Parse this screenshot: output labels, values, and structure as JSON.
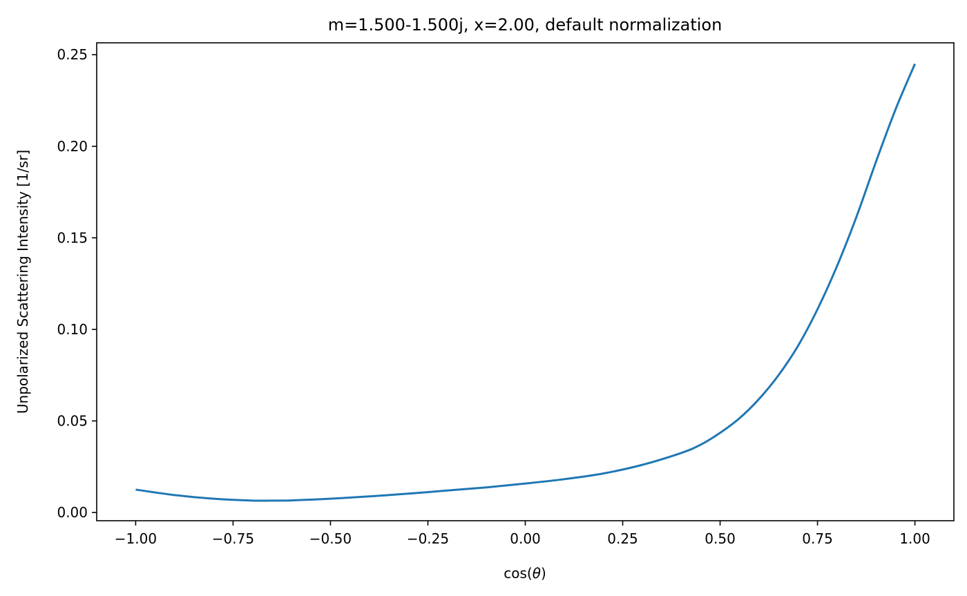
{
  "chart_data": {
    "type": "line",
    "title": "m=1.500-1.500j, x=2.00, default normalization",
    "xlabel_prefix": "cos(",
    "xlabel_symbol": "θ",
    "xlabel_suffix": ")",
    "ylabel": "Unpolarized Scattering Intensity [1/sr]",
    "xlim": [
      -1.1,
      1.1
    ],
    "ylim": [
      -0.0045,
      0.2565
    ],
    "x_ticks": [
      -1.0,
      -0.75,
      -0.5,
      -0.25,
      0.0,
      0.25,
      0.5,
      0.75,
      1.0
    ],
    "x_tick_labels": [
      "−1.00",
      "−0.75",
      "−0.50",
      "−0.25",
      "0.00",
      "0.25",
      "0.50",
      "0.75",
      "1.00"
    ],
    "y_ticks": [
      0.0,
      0.05,
      0.1,
      0.15,
      0.2,
      0.25
    ],
    "y_tick_labels": [
      "0.00",
      "0.05",
      "0.10",
      "0.15",
      "0.20",
      "0.25"
    ],
    "grid": false,
    "series": [
      {
        "color": "#1f77b4",
        "x": [
          -1.0,
          -0.9,
          -0.8,
          -0.7,
          -0.65,
          -0.6,
          -0.5,
          -0.4,
          -0.3,
          -0.2,
          -0.1,
          0.0,
          0.1,
          0.2,
          0.3,
          0.4,
          0.45,
          0.5,
          0.55,
          0.6,
          0.65,
          0.7,
          0.75,
          0.8,
          0.85,
          0.9,
          0.95,
          1.0
        ],
        "y": [
          0.0125,
          0.0095,
          0.0075,
          0.0065,
          0.0065,
          0.0066,
          0.0075,
          0.0088,
          0.0103,
          0.012,
          0.0137,
          0.0158,
          0.0182,
          0.0213,
          0.026,
          0.0325,
          0.037,
          0.0435,
          0.0515,
          0.062,
          0.075,
          0.091,
          0.111,
          0.1345,
          0.1615,
          0.1915,
          0.22,
          0.245
        ]
      }
    ]
  }
}
